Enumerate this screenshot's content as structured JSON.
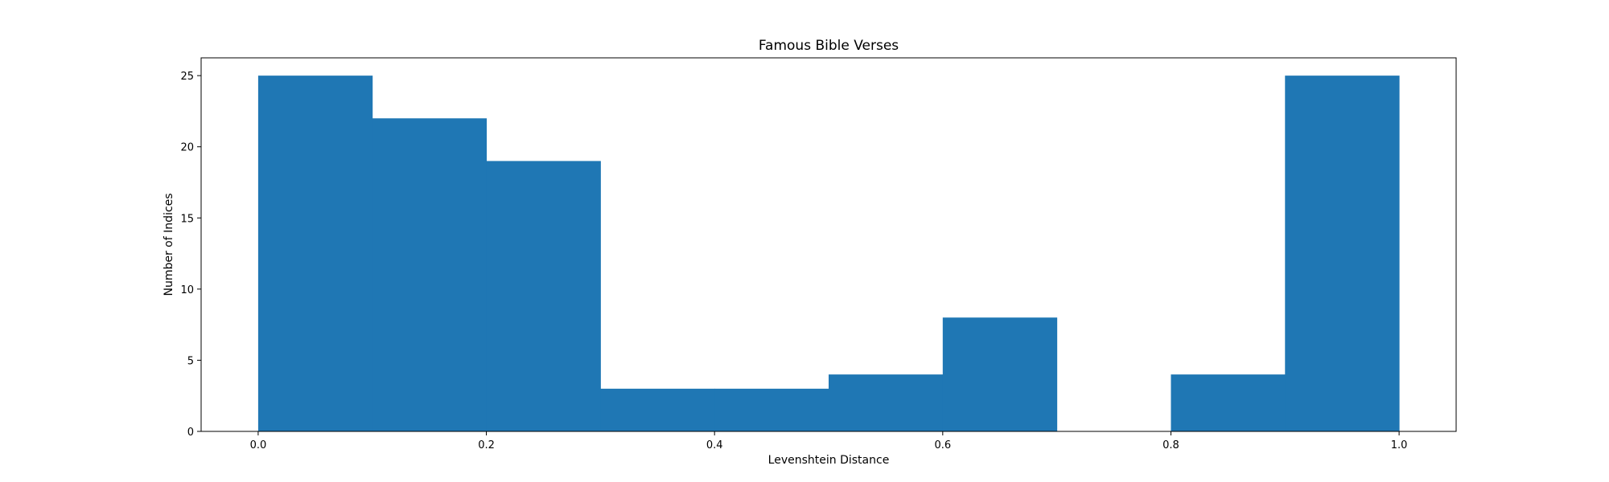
{
  "chart_data": {
    "type": "bar",
    "title": "Famous Bible Verses",
    "xlabel": "Levenshtein Distance",
    "ylabel": "Number of Indices",
    "bin_edges": [
      0.0,
      0.1,
      0.2,
      0.3,
      0.4,
      0.5,
      0.6,
      0.7,
      0.8,
      0.9,
      1.0
    ],
    "values": [
      25,
      22,
      19,
      3,
      3,
      4,
      8,
      0,
      4,
      25
    ],
    "xlim": [
      -0.05,
      1.05
    ],
    "ylim": [
      0,
      26.25
    ],
    "xticks": [
      0.0,
      0.2,
      0.4,
      0.6,
      0.8,
      1.0
    ],
    "xtick_labels": [
      "0.0",
      "0.2",
      "0.4",
      "0.6",
      "0.8",
      "1.0"
    ],
    "yticks": [
      0,
      5,
      10,
      15,
      20,
      25
    ],
    "ytick_labels": [
      "0",
      "5",
      "10",
      "15",
      "20",
      "25"
    ],
    "bar_color": "#1f77b4",
    "grid": false,
    "legend": "none"
  }
}
